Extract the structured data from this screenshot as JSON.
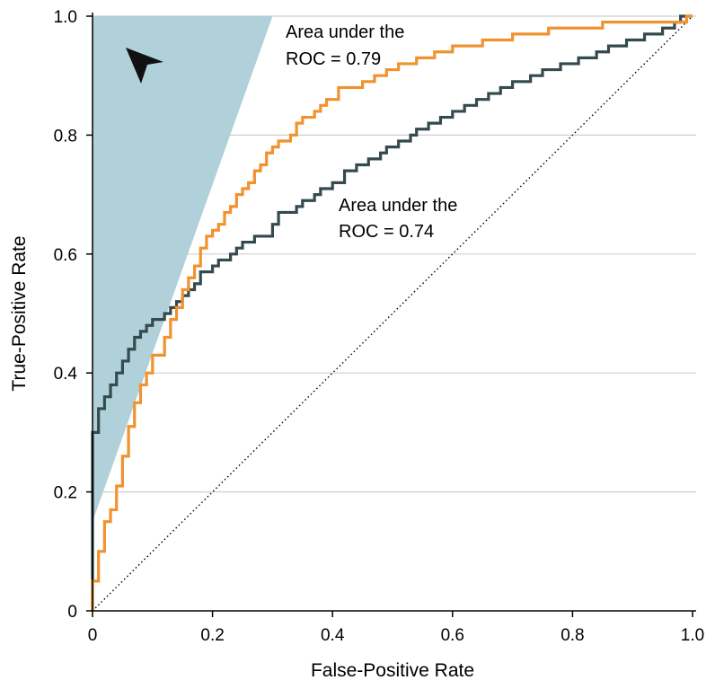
{
  "chart_data": {
    "type": "line",
    "title": "",
    "xlabel": "False-Positive Rate",
    "ylabel": "True-Positive Rate",
    "xlim": [
      0,
      1
    ],
    "ylim": [
      0,
      1
    ],
    "x_ticks": [
      0,
      0.2,
      0.4,
      0.6,
      0.8,
      1.0
    ],
    "x_tick_labels": [
      "0",
      "0.2",
      "0.4",
      "0.6",
      "0.8",
      "1.0"
    ],
    "y_ticks": [
      0,
      0.2,
      0.4,
      0.6,
      0.8,
      1.0
    ],
    "y_tick_labels": [
      "0",
      "0.2",
      "0.4",
      "0.6",
      "0.8",
      "1.0"
    ],
    "grid": "horizontal",
    "colors": {
      "orange_series": "#f0922e",
      "dark_series": "#354a4e",
      "shaded_region": "#b0d0da",
      "reference_line": "#000000"
    },
    "shaded_region": {
      "description": "shaded high-specificity region",
      "vertices": [
        [
          0,
          1.0
        ],
        [
          0.3,
          1.0
        ],
        [
          0,
          0.15
        ]
      ]
    },
    "reference_line": {
      "x": [
        0,
        1
      ],
      "y": [
        0,
        1
      ],
      "style": "dotted"
    },
    "series": [
      {
        "name": "Orange curve",
        "auc_label_line1": "Area under the",
        "auc_label_line2": "ROC = 0.79",
        "steps": [
          [
            0,
            0
          ],
          [
            0,
            0.05
          ],
          [
            0.01,
            0.05
          ],
          [
            0.01,
            0.1
          ],
          [
            0.02,
            0.1
          ],
          [
            0.02,
            0.15
          ],
          [
            0.03,
            0.15
          ],
          [
            0.03,
            0.17
          ],
          [
            0.04,
            0.17
          ],
          [
            0.04,
            0.21
          ],
          [
            0.05,
            0.21
          ],
          [
            0.05,
            0.26
          ],
          [
            0.06,
            0.26
          ],
          [
            0.06,
            0.31
          ],
          [
            0.07,
            0.31
          ],
          [
            0.07,
            0.35
          ],
          [
            0.08,
            0.35
          ],
          [
            0.08,
            0.38
          ],
          [
            0.09,
            0.38
          ],
          [
            0.09,
            0.4
          ],
          [
            0.1,
            0.4
          ],
          [
            0.1,
            0.43
          ],
          [
            0.12,
            0.43
          ],
          [
            0.12,
            0.46
          ],
          [
            0.13,
            0.46
          ],
          [
            0.13,
            0.49
          ],
          [
            0.14,
            0.49
          ],
          [
            0.14,
            0.51
          ],
          [
            0.15,
            0.51
          ],
          [
            0.15,
            0.54
          ],
          [
            0.16,
            0.54
          ],
          [
            0.16,
            0.56
          ],
          [
            0.17,
            0.56
          ],
          [
            0.17,
            0.58
          ],
          [
            0.18,
            0.58
          ],
          [
            0.18,
            0.61
          ],
          [
            0.19,
            0.61
          ],
          [
            0.19,
            0.63
          ],
          [
            0.2,
            0.63
          ],
          [
            0.2,
            0.64
          ],
          [
            0.21,
            0.64
          ],
          [
            0.21,
            0.65
          ],
          [
            0.22,
            0.65
          ],
          [
            0.22,
            0.67
          ],
          [
            0.23,
            0.67
          ],
          [
            0.23,
            0.68
          ],
          [
            0.24,
            0.68
          ],
          [
            0.24,
            0.7
          ],
          [
            0.25,
            0.7
          ],
          [
            0.25,
            0.71
          ],
          [
            0.26,
            0.71
          ],
          [
            0.26,
            0.72
          ],
          [
            0.27,
            0.72
          ],
          [
            0.27,
            0.74
          ],
          [
            0.28,
            0.74
          ],
          [
            0.28,
            0.75
          ],
          [
            0.29,
            0.75
          ],
          [
            0.29,
            0.77
          ],
          [
            0.3,
            0.77
          ],
          [
            0.3,
            0.78
          ],
          [
            0.31,
            0.78
          ],
          [
            0.31,
            0.79
          ],
          [
            0.33,
            0.79
          ],
          [
            0.33,
            0.8
          ],
          [
            0.34,
            0.8
          ],
          [
            0.34,
            0.82
          ],
          [
            0.35,
            0.82
          ],
          [
            0.35,
            0.83
          ],
          [
            0.37,
            0.83
          ],
          [
            0.37,
            0.84
          ],
          [
            0.38,
            0.84
          ],
          [
            0.38,
            0.85
          ],
          [
            0.39,
            0.85
          ],
          [
            0.39,
            0.86
          ],
          [
            0.41,
            0.86
          ],
          [
            0.41,
            0.88
          ],
          [
            0.45,
            0.88
          ],
          [
            0.45,
            0.89
          ],
          [
            0.47,
            0.89
          ],
          [
            0.47,
            0.9
          ],
          [
            0.49,
            0.9
          ],
          [
            0.49,
            0.91
          ],
          [
            0.51,
            0.91
          ],
          [
            0.51,
            0.92
          ],
          [
            0.54,
            0.92
          ],
          [
            0.54,
            0.93
          ],
          [
            0.57,
            0.93
          ],
          [
            0.57,
            0.94
          ],
          [
            0.6,
            0.94
          ],
          [
            0.6,
            0.95
          ],
          [
            0.65,
            0.95
          ],
          [
            0.65,
            0.96
          ],
          [
            0.7,
            0.96
          ],
          [
            0.7,
            0.97
          ],
          [
            0.76,
            0.97
          ],
          [
            0.76,
            0.98
          ],
          [
            0.85,
            0.98
          ],
          [
            0.85,
            0.99
          ],
          [
            0.99,
            0.99
          ],
          [
            0.99,
            1.0
          ],
          [
            1.0,
            1.0
          ]
        ]
      },
      {
        "name": "Dark curve",
        "auc_label_line1": "Area under the",
        "auc_label_line2": "ROC = 0.74",
        "steps": [
          [
            0,
            0
          ],
          [
            0,
            0.05
          ],
          [
            0,
            0.3
          ],
          [
            0.01,
            0.3
          ],
          [
            0.01,
            0.34
          ],
          [
            0.02,
            0.34
          ],
          [
            0.02,
            0.36
          ],
          [
            0.03,
            0.36
          ],
          [
            0.03,
            0.38
          ],
          [
            0.04,
            0.38
          ],
          [
            0.04,
            0.4
          ],
          [
            0.05,
            0.4
          ],
          [
            0.05,
            0.42
          ],
          [
            0.06,
            0.42
          ],
          [
            0.06,
            0.44
          ],
          [
            0.07,
            0.44
          ],
          [
            0.07,
            0.46
          ],
          [
            0.08,
            0.46
          ],
          [
            0.08,
            0.47
          ],
          [
            0.09,
            0.47
          ],
          [
            0.09,
            0.48
          ],
          [
            0.1,
            0.48
          ],
          [
            0.1,
            0.49
          ],
          [
            0.12,
            0.49
          ],
          [
            0.12,
            0.5
          ],
          [
            0.13,
            0.5
          ],
          [
            0.13,
            0.51
          ],
          [
            0.14,
            0.51
          ],
          [
            0.14,
            0.52
          ],
          [
            0.15,
            0.52
          ],
          [
            0.15,
            0.53
          ],
          [
            0.16,
            0.53
          ],
          [
            0.16,
            0.54
          ],
          [
            0.17,
            0.54
          ],
          [
            0.17,
            0.55
          ],
          [
            0.18,
            0.55
          ],
          [
            0.18,
            0.57
          ],
          [
            0.2,
            0.57
          ],
          [
            0.2,
            0.58
          ],
          [
            0.21,
            0.58
          ],
          [
            0.21,
            0.59
          ],
          [
            0.23,
            0.59
          ],
          [
            0.23,
            0.6
          ],
          [
            0.24,
            0.6
          ],
          [
            0.24,
            0.61
          ],
          [
            0.25,
            0.61
          ],
          [
            0.25,
            0.62
          ],
          [
            0.27,
            0.62
          ],
          [
            0.27,
            0.63
          ],
          [
            0.3,
            0.63
          ],
          [
            0.3,
            0.65
          ],
          [
            0.31,
            0.65
          ],
          [
            0.31,
            0.67
          ],
          [
            0.34,
            0.67
          ],
          [
            0.34,
            0.68
          ],
          [
            0.35,
            0.68
          ],
          [
            0.35,
            0.69
          ],
          [
            0.37,
            0.69
          ],
          [
            0.37,
            0.7
          ],
          [
            0.38,
            0.7
          ],
          [
            0.38,
            0.71
          ],
          [
            0.4,
            0.71
          ],
          [
            0.4,
            0.72
          ],
          [
            0.42,
            0.72
          ],
          [
            0.42,
            0.74
          ],
          [
            0.44,
            0.74
          ],
          [
            0.44,
            0.75
          ],
          [
            0.46,
            0.75
          ],
          [
            0.46,
            0.76
          ],
          [
            0.48,
            0.76
          ],
          [
            0.48,
            0.77
          ],
          [
            0.49,
            0.77
          ],
          [
            0.49,
            0.78
          ],
          [
            0.51,
            0.78
          ],
          [
            0.51,
            0.79
          ],
          [
            0.53,
            0.79
          ],
          [
            0.53,
            0.8
          ],
          [
            0.54,
            0.8
          ],
          [
            0.54,
            0.81
          ],
          [
            0.56,
            0.81
          ],
          [
            0.56,
            0.82
          ],
          [
            0.58,
            0.82
          ],
          [
            0.58,
            0.83
          ],
          [
            0.6,
            0.83
          ],
          [
            0.6,
            0.84
          ],
          [
            0.62,
            0.84
          ],
          [
            0.62,
            0.85
          ],
          [
            0.64,
            0.85
          ],
          [
            0.64,
            0.86
          ],
          [
            0.66,
            0.86
          ],
          [
            0.66,
            0.87
          ],
          [
            0.68,
            0.87
          ],
          [
            0.68,
            0.88
          ],
          [
            0.7,
            0.88
          ],
          [
            0.7,
            0.89
          ],
          [
            0.73,
            0.89
          ],
          [
            0.73,
            0.9
          ],
          [
            0.75,
            0.9
          ],
          [
            0.75,
            0.91
          ],
          [
            0.78,
            0.91
          ],
          [
            0.78,
            0.92
          ],
          [
            0.81,
            0.92
          ],
          [
            0.81,
            0.93
          ],
          [
            0.84,
            0.93
          ],
          [
            0.84,
            0.94
          ],
          [
            0.86,
            0.94
          ],
          [
            0.86,
            0.95
          ],
          [
            0.89,
            0.95
          ],
          [
            0.89,
            0.96
          ],
          [
            0.92,
            0.96
          ],
          [
            0.92,
            0.97
          ],
          [
            0.95,
            0.97
          ],
          [
            0.95,
            0.98
          ],
          [
            0.97,
            0.98
          ],
          [
            0.97,
            0.99
          ],
          [
            0.98,
            0.99
          ],
          [
            0.98,
            1.0
          ],
          [
            1.0,
            1.0
          ]
        ]
      }
    ]
  }
}
